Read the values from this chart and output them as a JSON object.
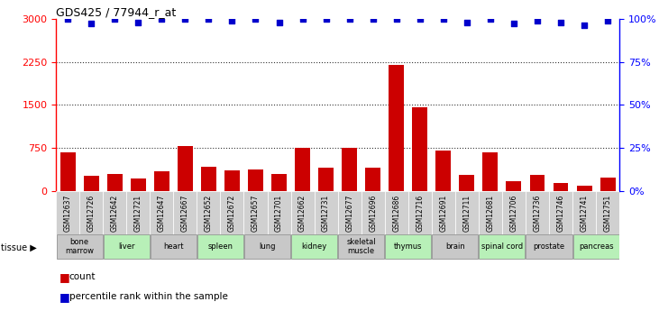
{
  "title": "GDS425 / 77944_r_at",
  "samples": [
    "GSM12637",
    "GSM12726",
    "GSM12642",
    "GSM12721",
    "GSM12647",
    "GSM12667",
    "GSM12652",
    "GSM12672",
    "GSM12657",
    "GSM12701",
    "GSM12662",
    "GSM12731",
    "GSM12677",
    "GSM12696",
    "GSM12686",
    "GSM12716",
    "GSM12691",
    "GSM12711",
    "GSM12681",
    "GSM12706",
    "GSM12736",
    "GSM12746",
    "GSM12741",
    "GSM12751"
  ],
  "counts": [
    680,
    270,
    300,
    220,
    350,
    780,
    430,
    370,
    380,
    300,
    760,
    410,
    760,
    410,
    2200,
    1460,
    700,
    280,
    670,
    170,
    280,
    150,
    90,
    230
  ],
  "percentile_ranks": [
    100,
    97,
    100,
    98,
    100,
    100,
    100,
    99,
    100,
    98,
    100,
    100,
    100,
    100,
    100,
    100,
    100,
    98,
    100,
    97,
    99,
    98,
    96,
    99
  ],
  "tissues": [
    {
      "label": "bone\nmarrow",
      "start": 0,
      "end": 2,
      "color": "#c8c8c8"
    },
    {
      "label": "liver",
      "start": 2,
      "end": 4,
      "color": "#b8f0b8"
    },
    {
      "label": "heart",
      "start": 4,
      "end": 6,
      "color": "#c8c8c8"
    },
    {
      "label": "spleen",
      "start": 6,
      "end": 8,
      "color": "#b8f0b8"
    },
    {
      "label": "lung",
      "start": 8,
      "end": 10,
      "color": "#c8c8c8"
    },
    {
      "label": "kidney",
      "start": 10,
      "end": 12,
      "color": "#b8f0b8"
    },
    {
      "label": "skeletal\nmuscle",
      "start": 12,
      "end": 14,
      "color": "#c8c8c8"
    },
    {
      "label": "thymus",
      "start": 14,
      "end": 16,
      "color": "#b8f0b8"
    },
    {
      "label": "brain",
      "start": 16,
      "end": 18,
      "color": "#c8c8c8"
    },
    {
      "label": "spinal cord",
      "start": 18,
      "end": 20,
      "color": "#b8f0b8"
    },
    {
      "label": "prostate",
      "start": 20,
      "end": 22,
      "color": "#c8c8c8"
    },
    {
      "label": "pancreas",
      "start": 22,
      "end": 24,
      "color": "#b8f0b8"
    }
  ],
  "ylim_left": [
    0,
    3000
  ],
  "ylim_right": [
    0,
    100
  ],
  "yticks_left": [
    0,
    750,
    1500,
    2250,
    3000
  ],
  "yticks_right": [
    0,
    25,
    50,
    75,
    100
  ],
  "bar_color": "#cc0000",
  "dot_color": "#0000cc",
  "plot_bg": "#ffffff",
  "sample_bg": "#d0d0d0",
  "dotted_grid_color": "#333333"
}
